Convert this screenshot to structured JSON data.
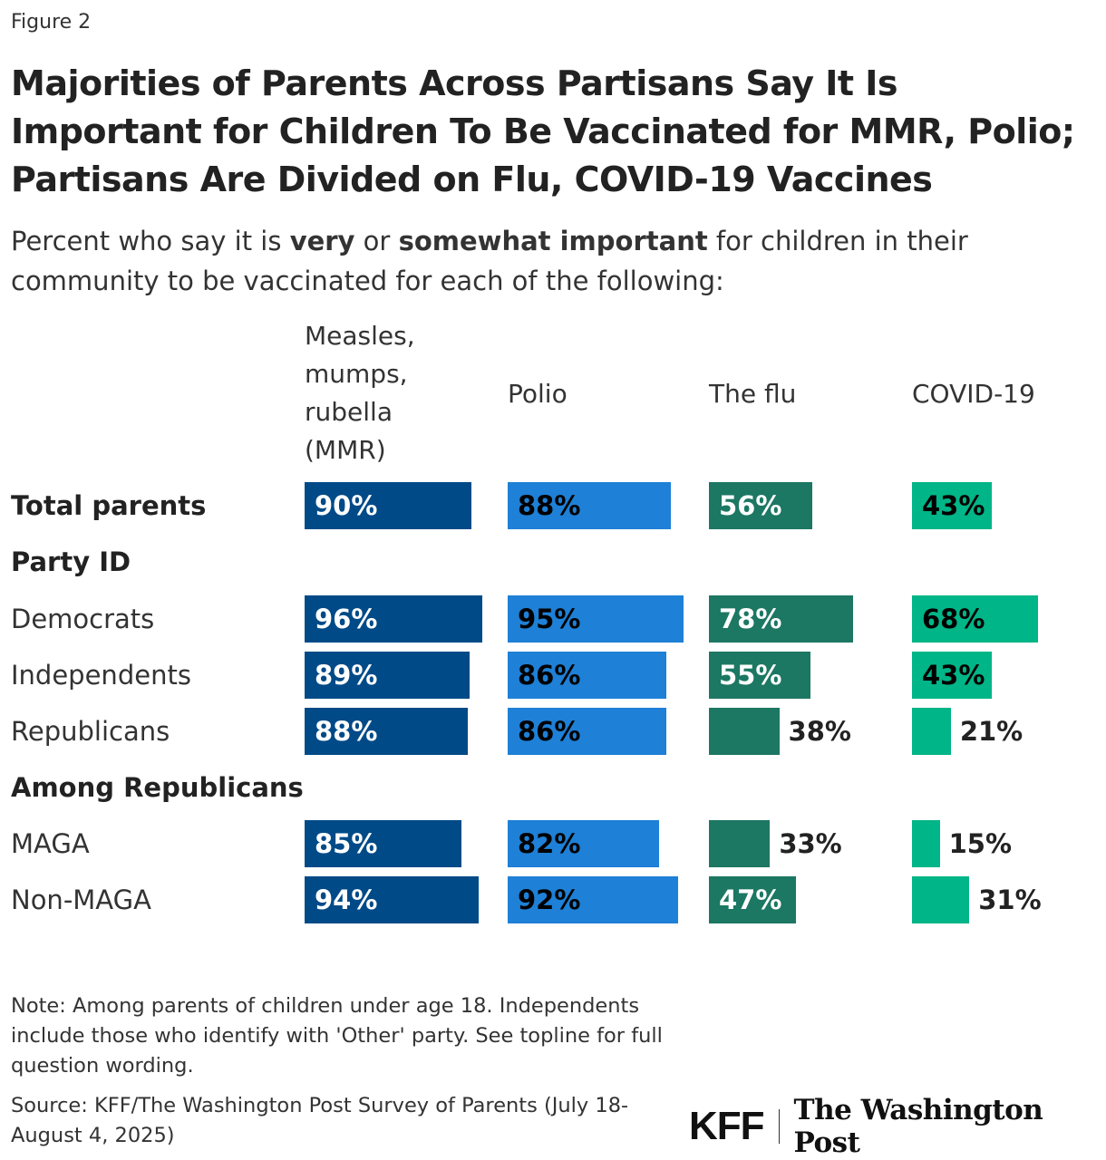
{
  "figure_label": "Figure 2",
  "chart_data": {
    "type": "bar",
    "title": "Majorities of Parents Across Partisans Say It Is Important for Children To Be Vaccinated for MMR, Polio; Partisans Are Divided on Flu, COVID-19 Vaccines",
    "subtitle_parts": [
      "Percent who say it is ",
      "very",
      " or ",
      "somewhat important",
      " for children in their community to be vaccinated for each of the following:"
    ],
    "categories": [
      {
        "label": "Total parents",
        "type": "group-bold"
      },
      {
        "label": "Party ID",
        "type": "heading"
      },
      {
        "label": "Democrats",
        "type": "row"
      },
      {
        "label": "Independents",
        "type": "row"
      },
      {
        "label": "Republicans",
        "type": "row"
      },
      {
        "label": "Among Republicans",
        "type": "heading"
      },
      {
        "label": "MAGA",
        "type": "row"
      },
      {
        "label": "Non-MAGA",
        "type": "row"
      }
    ],
    "series": [
      {
        "name": "Measles, mumps, rubella (MMR)",
        "color": "#004a87",
        "label_color": "#ffffff",
        "values": [
          90,
          null,
          96,
          89,
          88,
          null,
          85,
          94
        ]
      },
      {
        "name": "Polio",
        "color": "#1e80d6",
        "label_color": "#000000",
        "values": [
          88,
          null,
          95,
          86,
          86,
          null,
          82,
          92
        ]
      },
      {
        "name": "The flu",
        "color": "#1c7763",
        "label_color": "#ffffff",
        "values": [
          56,
          null,
          78,
          55,
          38,
          null,
          33,
          47
        ]
      },
      {
        "name": "COVID-19",
        "color": "#00b587",
        "label_color": "#000000",
        "values": [
          43,
          null,
          68,
          43,
          21,
          null,
          15,
          31
        ]
      }
    ],
    "value_suffix": "%",
    "xlim": [
      0,
      100
    ]
  },
  "note": "Note: Among parents of children under age 18. Independents include those who identify with 'Other' party. See topline for full question wording.",
  "source": "Source: KFF/The Washington Post Survey of Parents (July 18-August 4, 2025)",
  "logos": {
    "kff": "KFF",
    "wapo": "The Washington Post"
  }
}
